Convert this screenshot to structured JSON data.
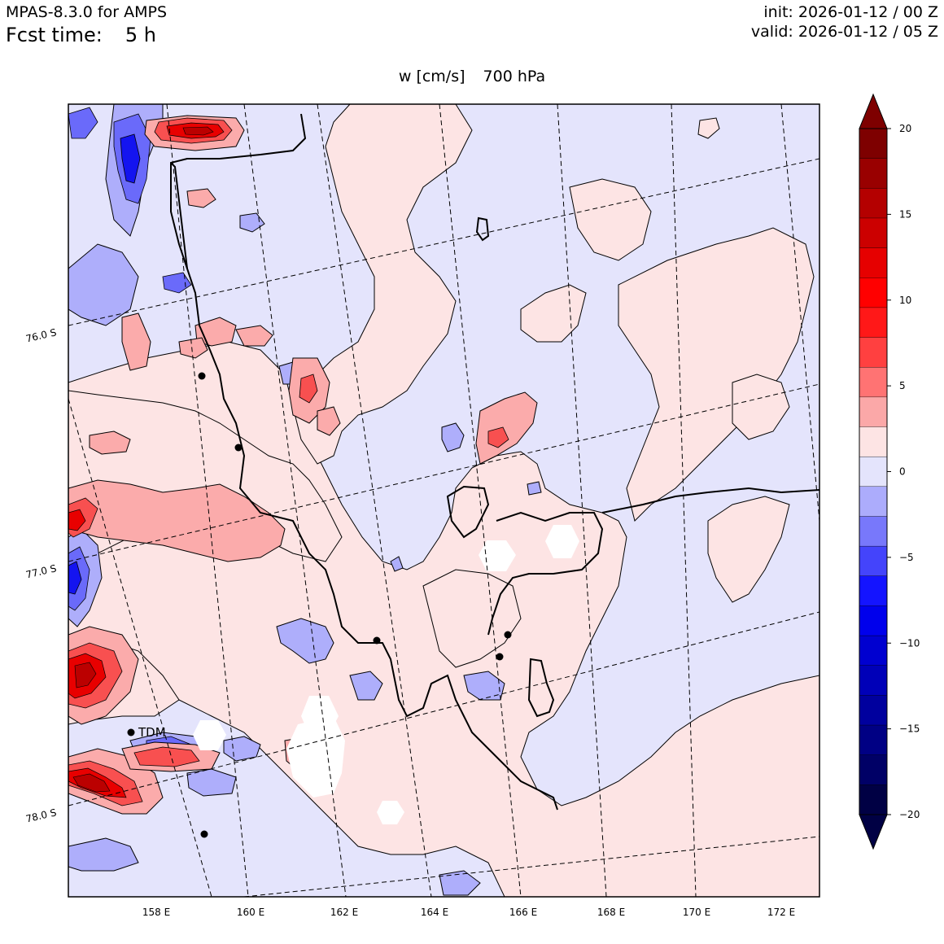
{
  "header": {
    "model": "MPAS-8.3.0 for AMPS",
    "fcst_label": "Fcst time:",
    "fcst_value": "5 h",
    "init": "init: 2026-01-12 / 00 Z",
    "valid": "valid: 2026-01-12 / 05 Z"
  },
  "map": {
    "variable": "w [cm/s]",
    "level": "700 hPa",
    "lon_labels": [
      "158 E",
      "160 E",
      "162 E",
      "164 E",
      "166 E",
      "168 E",
      "170 E",
      "172 E"
    ],
    "lat_labels": [
      "76.0 S",
      "77.0 S",
      "78.0 S"
    ],
    "station_label": "TDM",
    "colors": {
      "ocean_bg": "#e4e4fc",
      "weak_pos": "#fde4e4",
      "pos_3": "#fbabab",
      "pos_6": "#f85050",
      "pos_10": "#e80000",
      "pos_15": "#bb0000",
      "neg_3": "#aeaefb",
      "neg_6": "#6a6afa",
      "neg_10": "#1414f0",
      "neg_15": "#0000b8"
    }
  },
  "colorbar": {
    "tick_labels": [
      "20",
      "15",
      "10",
      "5",
      "0",
      "−5",
      "−10",
      "−15",
      "−20"
    ],
    "levels": [
      20,
      18,
      16,
      15,
      14,
      12,
      10,
      9,
      8,
      6,
      5,
      4,
      2,
      0,
      -2,
      -4,
      -5,
      -6,
      -8,
      -9,
      -10,
      -12,
      -14,
      -15,
      -16,
      -18,
      -20
    ],
    "colors": [
      "#7e0000",
      "#990000",
      "#b40000",
      "#cc0000",
      "#e60000",
      "#ff0000",
      "#ff1818",
      "#ff4040",
      "#ff7373",
      "#fba8a8",
      "#fde4e4",
      "#e4e4fc",
      "#acacfc",
      "#7878fb",
      "#4444fb",
      "#1414ff",
      "#0000ec",
      "#0000d0",
      "#0000b8",
      "#00009e",
      "#000084",
      "#000066",
      "#000044"
    ],
    "extend_top_color": "#7e0000",
    "extend_bottom_color": "#000044"
  }
}
